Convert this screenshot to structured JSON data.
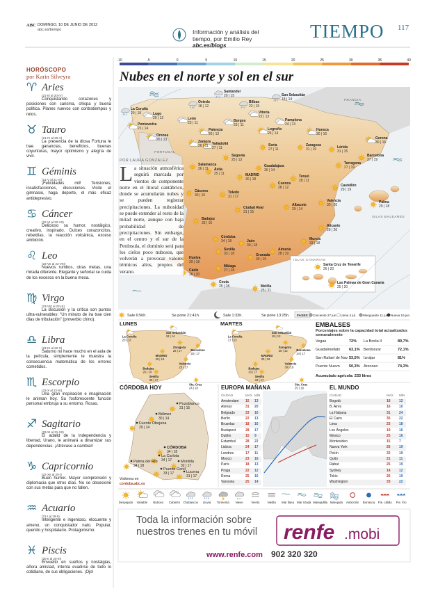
{
  "header": {
    "brand": "ABC",
    "date": "DOMINGO, 10 DE JUNIO DE 2012",
    "url": "abc.es/tiempo",
    "blurb": "Información y análisis del tiempo, por Emilio Rey",
    "blog": "abc.es/blogs",
    "section": "TIEMPO",
    "page": "117"
  },
  "horoscope": {
    "title": "HORÓSCOPO",
    "author": "por Karin Silveyra",
    "signs": [
      {
        "symbol": "♈",
        "name": "Aries",
        "dates": "(21-III al 20-IV)",
        "text": "Conquistando corazones y posiciones con carisma, chispa y buena política. Planes nuevos con contratiempos y retos."
      },
      {
        "symbol": "♉",
        "name": "Tauro",
        "dates": "(21-IV al 20-V)",
        "text": "La presencia de la diosa Fortuna le trae ganancias, beneficios, buenas coyunturas, mayor optimismo y alegría de vivir."
      },
      {
        "symbol": "♊",
        "name": "Géminis",
        "dates": "(21-V al 21-VI)",
        "text": "¡Felicidades mil! Tensiones, insatisfacciones, discusiones. Visite el gimnasio, haga deporte, el más eficaz antidepresivo."
      },
      {
        "symbol": "♋",
        "name": "Cáncer",
        "dates": "(22-VI al 22-VII)",
        "text": "Delicioso su humor, nostálgico, creativo, inspirado. Dulces corazoncitos, rebeldías, la reacción volcánica, exceso ambición."
      },
      {
        "symbol": "♌",
        "name": "Leo",
        "dates": "(23-VII al 22-VIII)",
        "text": "Nuevos rumbos, otras metas, una mirada diferente. Elegante y señorial se cuida de los excesos en la buena mesa."
      },
      {
        "symbol": "♍",
        "name": "Virgo",
        "dates": "(23-VIII al 22-IX)",
        "text": "La discusión y la crítica son puntos ultra-vulnerables: “Un minuto de ira trae cien días de tribulación” (proverbio chino)."
      },
      {
        "symbol": "♎",
        "name": "Libra",
        "dates": "(23-IX al 22-X)",
        "text": "Saturno no hace mucho en el aula de la película, simplemente le muestra la consecuencia matemática de los errores cometidos."
      },
      {
        "symbol": "♏",
        "name": "Escorpio",
        "dates": "(23-X al 22-XI)",
        "text": "Una gran inspiración e imaginación le animan hoy. Su fosforescente función personal embruja a su entorno. Rosas."
      },
      {
        "symbol": "♐",
        "name": "Sagitario",
        "dates": "(23-XI al 21-XII)",
        "text": "El adalid de la independencia y libertad, Urano, le animará a dinamizar sus dependencias. ¡Atrévase a cambiar!"
      },
      {
        "symbol": "♑",
        "name": "Capricornio",
        "dates": "(22-XII al 20-I)",
        "text": "Buen humor. Mayor comprensión y diplomacia que otros días. No se obsesione con sus metas para que no fallen."
      },
      {
        "symbol": "♒",
        "name": "Acuario",
        "dates": "(21-I al 19-II)",
        "text": "Inteligente e ingenioso, elocuente y ameno, un conquistador nato. Popular, querido y hospitalario. Protagonismo."
      },
      {
        "symbol": "♓",
        "name": "Piscis",
        "dates": "(20-II al 20-III)",
        "text": "Envuelto en sueños y nostalgias, añora amistad, intenta evadirse de todo lo cotidiano, de sus obligaciones. ¡Ojo!"
      }
    ]
  },
  "scale": {
    "ticks": [
      -10,
      -5,
      0,
      5,
      10,
      15,
      20,
      25,
      30,
      35,
      40
    ]
  },
  "main": {
    "headline": "Nubes en el norte y sol en el sur",
    "byline": "POR LAURA GONZÁLEZ",
    "article": "La situación atmosférica seguirá marcada por vientos de componente norte en el litoral cantábrico, donde se acumularán nubes y se pueden registrar precipitaciones. La nubosidad se puede extender al resto de la mitad norte, aunque con baja probabilidad de precipitaciones. Sin embargo, en el centro y el sur de la Península, el dominio será para los cielos poco nubosos, que volverán a provocar valores térmicos altos, propios del verano.",
    "regions": [
      "FRANCIA",
      "PORTUGAL",
      "ISLAS BALEARES",
      "ISLAS CANARIAS"
    ],
    "cities": [
      {
        "name": "La Coruña",
        "t": "20 | 15"
      },
      {
        "name": "Santander",
        "t": "20 | 15"
      },
      {
        "name": "San Sebastián",
        "t": "18 | 14"
      },
      {
        "name": "Oviedo",
        "t": "18 | 12"
      },
      {
        "name": "Bilbao",
        "t": "23 | 15"
      },
      {
        "name": "Lugo",
        "t": "20 | 12"
      },
      {
        "name": "Pontevedra",
        "t": "21 | 14"
      },
      {
        "name": "Orense",
        "t": "26 | 13"
      },
      {
        "name": "León",
        "t": "23 | 11"
      },
      {
        "name": "Burgos",
        "t": "23 | 11"
      },
      {
        "name": "Vitoria",
        "t": "22 | 13"
      },
      {
        "name": "Pamplona",
        "t": "24 | 13"
      },
      {
        "name": "Logroño",
        "t": "26 | 14"
      },
      {
        "name": "Huesca",
        "t": "30 | 16"
      },
      {
        "name": "Gerona",
        "t": "30 | 16"
      },
      {
        "name": "Lérida",
        "t": "31 | 15"
      },
      {
        "name": "Barcelona",
        "t": "27 | 19"
      },
      {
        "name": "Zaragoza",
        "t": "31 | 16"
      },
      {
        "name": "Tarragona",
        "t": "27 | 19"
      },
      {
        "name": "Soria",
        "t": "27 | 11"
      },
      {
        "name": "Palencia",
        "t": "26 | 12"
      },
      {
        "name": "Valladolid",
        "t": "27 | 11"
      },
      {
        "name": "Zamora",
        "t": "26 | 11"
      },
      {
        "name": "Salamanca",
        "t": "26 | 11"
      },
      {
        "name": "Segovia",
        "t": "25 | 13"
      },
      {
        "name": "Ávila",
        "t": "25 | 11"
      },
      {
        "name": "Guadalajara",
        "t": "30 | 14"
      },
      {
        "name": "MADRID",
        "t": "30 | 18"
      },
      {
        "name": "Teruel",
        "t": "28 | 11"
      },
      {
        "name": "Castellón",
        "t": "29 | 19"
      },
      {
        "name": "Valencia",
        "t": "30 | 20"
      },
      {
        "name": "Palma",
        "t": "29 | 18"
      },
      {
        "name": "Cuenca",
        "t": "28 | 12"
      },
      {
        "name": "Cáceres",
        "t": "30 | 15"
      },
      {
        "name": "Toledo",
        "t": "31 | 17"
      },
      {
        "name": "Ciudad Real",
        "t": "31 | 15"
      },
      {
        "name": "Albacete",
        "t": "29 | 14"
      },
      {
        "name": "Badajoz",
        "t": "33 | 16"
      },
      {
        "name": "Alicante",
        "t": "29 | 20"
      },
      {
        "name": "Murcia",
        "t": "33 | 18"
      },
      {
        "name": "Córdoba",
        "t": "34 | 18"
      },
      {
        "name": "Jaén",
        "t": "30 | 18"
      },
      {
        "name": "Sevilla",
        "t": "33 | 18"
      },
      {
        "name": "Huelva",
        "t": "29 | 18"
      },
      {
        "name": "Granada",
        "t": "30 | 15"
      },
      {
        "name": "Almería",
        "t": "28 | 19"
      },
      {
        "name": "Málaga",
        "t": "27 | 18"
      },
      {
        "name": "Cádiz",
        "t": "26 | 20"
      },
      {
        "name": "Ceuta",
        "t": "25 | 18"
      },
      {
        "name": "Melilla",
        "t": "25 | 21"
      },
      {
        "name": "Santa Cruz de Tenerife",
        "t": "26 | 20"
      },
      {
        "name": "Las Palmas de Gran Canaria",
        "t": "25 | 20"
      }
    ]
  },
  "sun": {
    "items": [
      "Sale 6:56h.",
      "Se pone 21:41h.",
      "Sale 1:33h.",
      "Se pone 13:25h."
    ],
    "phases_label": "FASES",
    "phases": [
      "Creciente 27 jun.",
      "Llena 4 jul.",
      "Menguante 11 jun.",
      "Nueva 19 jun."
    ]
  },
  "forecast": [
    {
      "title": "LUNES",
      "cities": [
        {
          "name": "La Coruña",
          "t": "20 | 13"
        },
        {
          "name": "San Sebastián",
          "t": "18 | 14"
        },
        {
          "name": "Zaragoza",
          "t": "28 | 17"
        },
        {
          "name": "Barcelona",
          "t": "25 | 17"
        },
        {
          "name": "MADRID",
          "t": "29 | 15"
        },
        {
          "name": "Badajoz",
          "t": "26 | 14"
        },
        {
          "name": "Valencia",
          "t": "25 | 17"
        },
        {
          "name": "Sevilla",
          "t": "30 | 17"
        },
        {
          "name": "Sta. Cruz",
          "t": "24 | 18"
        }
      ]
    },
    {
      "title": "MARTES",
      "cities": [
        {
          "name": "La Coruña",
          "t": "17 | 13"
        },
        {
          "name": "San Sebastián",
          "t": "19 | 13"
        },
        {
          "name": "Zaragoza",
          "t": "28 | 16"
        },
        {
          "name": "Barcelona",
          "t": "24 | 17"
        },
        {
          "name": "MADRID",
          "t": "30 | 18"
        },
        {
          "name": "Badajoz",
          "t": "33 | 17"
        },
        {
          "name": "Valencia",
          "t": "30 | 19"
        },
        {
          "name": "Sevilla",
          "t": "34 | 17"
        },
        {
          "name": "Sta. Cruz",
          "t": "25 | 19"
        }
      ]
    }
  ],
  "reservoirs": {
    "title": "EMBALSES",
    "subtitle": "Porcentajes sobre la capacidad total actualizados semanalmente",
    "rows": [
      [
        "Vegas",
        "72%",
        "La Brelia II",
        "89,7%"
      ],
      [
        "Guadalmellato",
        "63,1%",
        "Bembézar",
        "72,1%"
      ],
      [
        "San Rafael de Navallana",
        "53,5%",
        "Iznájar",
        "81%"
      ],
      [
        "Puente Nuevo",
        "50,3%",
        "Arenoso",
        "74,3%"
      ]
    ],
    "total": "Acumulado agrícola: 233 litros"
  },
  "cordoba": {
    "title": "CÓRDOBA HOY",
    "cities": [
      {
        "name": "Pozoblanco",
        "t": "31 | 15"
      },
      {
        "name": "Bélmez",
        "t": "30 | 14"
      },
      {
        "name": "Fuente Obejuna",
        "t": "29 | 14"
      },
      {
        "name": "CÓRDOBA",
        "t": "34 | 18"
      },
      {
        "name": "La Carlota",
        "t": "34 | 17"
      },
      {
        "name": "Montilla",
        "t": "32 | 17"
      },
      {
        "name": "Palma del Río",
        "t": "34 | 18"
      },
      {
        "name": "Puente Genil",
        "t": "33 | 17"
      },
      {
        "name": "Lucena",
        "t": "31 | 17"
      }
    ],
    "visit": "Visítenos en",
    "site": "cordoba.abc.es"
  },
  "europe": {
    "title": "EUROPA MAÑANA",
    "columns": [
      "CIUDAD",
      "MÁX",
      "MÍN"
    ],
    "rows": [
      [
        "Amsterdam",
        15,
        13
      ],
      [
        "Atenas",
        31,
        20
      ],
      [
        "Belgrado",
        33,
        16
      ],
      [
        "Berlín",
        22,
        13
      ],
      [
        "Bruselas",
        18,
        16
      ],
      [
        "Budapest",
        28,
        17
      ],
      [
        "Dublín",
        15,
        9
      ],
      [
        "Estambul",
        28,
        22
      ],
      [
        "Lisboa",
        24,
        17
      ],
      [
        "Londres",
        17,
        11
      ],
      [
        "Moscú",
        23,
        16
      ],
      [
        "París",
        18,
        13
      ],
      [
        "Praga",
        22,
        12
      ],
      [
        "Roma",
        25,
        16
      ],
      [
        "Varsovia",
        25,
        14
      ]
    ]
  },
  "world": {
    "title": "EL MUNDO",
    "columns": [
      "CIUDAD",
      "MÁX",
      "MÍN"
    ],
    "rows": [
      [
        "Bogotá",
        18,
        12
      ],
      [
        "B. Aires",
        16,
        10
      ],
      [
        "La Habana",
        31,
        24
      ],
      [
        "El Cairo",
        35,
        22
      ],
      [
        "Lima",
        23,
        18
      ],
      [
        "Los Ángeles",
        19,
        16
      ],
      [
        "México",
        25,
        16
      ],
      [
        "Montevideo",
        15,
        7
      ],
      [
        "Nueva York",
        26,
        19
      ],
      [
        "Pekín",
        32,
        19
      ],
      [
        "Quito",
        21,
        11
      ],
      [
        "Rabat",
        25,
        19
      ],
      [
        "Sydney",
        14,
        12
      ],
      [
        "Tokio",
        26,
        19
      ],
      [
        "Washington",
        33,
        22
      ]
    ]
  },
  "legend": [
    "Despejado",
    "Variable",
    "Nuboso",
    "Cubierto",
    "Chubascos",
    "Lluvia",
    "Tormenta",
    "Nieve",
    "Viento",
    "Niebla",
    "Mar llana",
    "Mar rizada",
    "Marejadilla",
    "Marejada",
    "Anticiclón",
    "Borrasca",
    "Fte. cálido",
    "Fte. frío"
  ],
  "ad": {
    "line1": "Toda la información sobre",
    "line2": "nuestros trenes en tu móvil",
    "brand": "renfe",
    "brand_suffix": ".mobi",
    "url": "www.renfe.com",
    "phone": "902 320 320"
  }
}
